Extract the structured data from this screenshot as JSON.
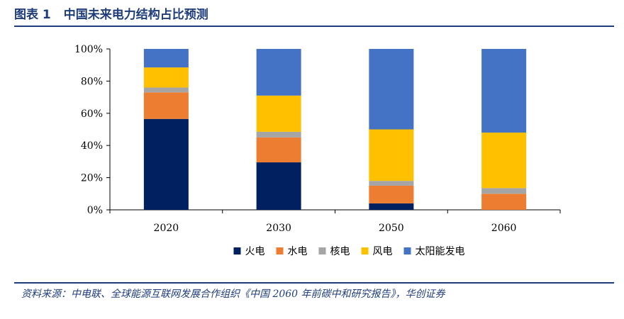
{
  "header": {
    "figure_no": "图表 1",
    "title": "中国未来电力结构占比预测"
  },
  "source": "资料来源：中电联、全球能源互联网发展合作组织《中国 2060 年前碳中和研究报告》，华创证券",
  "chart_data": {
    "type": "bar",
    "stacked": true,
    "categories": [
      "2020",
      "2030",
      "2050",
      "2060"
    ],
    "series": [
      {
        "name": "火电",
        "color": "#002060",
        "values": [
          56.5,
          29.5,
          4.0,
          0.0
        ]
      },
      {
        "name": "水电",
        "color": "#ed7d31",
        "values": [
          16.5,
          15.5,
          11.0,
          10.0
        ]
      },
      {
        "name": "核电",
        "color": "#a5a5a5",
        "values": [
          3.0,
          3.5,
          3.0,
          3.5
        ]
      },
      {
        "name": "风电",
        "color": "#ffc000",
        "values": [
          12.5,
          22.5,
          32.0,
          34.5
        ]
      },
      {
        "name": "太阳能发电",
        "color": "#4472c4",
        "values": [
          11.5,
          29.0,
          50.0,
          52.0
        ]
      }
    ],
    "ylim": [
      0,
      100
    ],
    "yticks": [
      "0%",
      "20%",
      "40%",
      "60%",
      "80%",
      "100%"
    ],
    "ytick_values": [
      0,
      20,
      40,
      60,
      80,
      100
    ],
    "grid": false,
    "legend": "bottom",
    "title": "",
    "xlabel": "",
    "ylabel": ""
  }
}
